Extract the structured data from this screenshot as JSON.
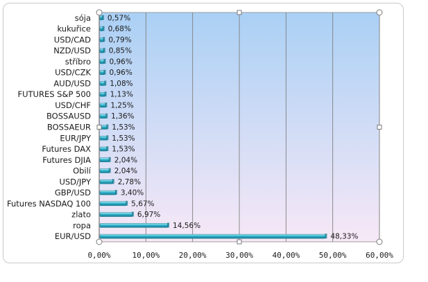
{
  "chart_data": {
    "type": "bar",
    "orientation": "horizontal",
    "categories": [
      "sója",
      "kukuřice",
      "USD/CAD",
      "NZD/USD",
      "stříbro",
      "USD/CZK",
      "AUD/USD",
      "FUTURES S&P 500",
      "USD/CHF",
      "BOSSAUSD",
      "BOSSAEUR",
      "EUR/JPY",
      "Futures DAX",
      "Futures DJIA",
      "Obilí",
      "USD/JPY",
      "GBP/USD",
      "Futures NASDAQ 100",
      "zlato",
      "ropa",
      "EUR/USD"
    ],
    "values": [
      0.57,
      0.68,
      0.79,
      0.85,
      0.96,
      0.96,
      1.08,
      1.13,
      1.25,
      1.36,
      1.53,
      1.53,
      1.53,
      2.04,
      2.04,
      2.78,
      3.4,
      5.67,
      6.97,
      14.56,
      48.33
    ],
    "data_labels": [
      "0,57%",
      "0,68%",
      "0,79%",
      "0,85%",
      "0,96%",
      "0,96%",
      "1,08%",
      "1,13%",
      "1,25%",
      "1,36%",
      "1,53%",
      "1,53%",
      "1,53%",
      "2,04%",
      "2,04%",
      "2,78%",
      "3,40%",
      "5,67%",
      "6,97%",
      "14,56%",
      "48,33%"
    ],
    "x_ticks": [
      0,
      10,
      20,
      30,
      40,
      50,
      60
    ],
    "x_tick_labels": [
      "0,00%",
      "10,00%",
      "20,00%",
      "30,00%",
      "40,00%",
      "50,00%",
      "60,00%"
    ],
    "xlim": [
      0,
      60
    ],
    "title": "",
    "xlabel": "",
    "ylabel": "",
    "grid": "vertical",
    "legend": "none",
    "colors": {
      "bar": "#2fb3cc",
      "bar_dark": "#16798f",
      "bar_light": "#bff0f8",
      "plot_top": "#aad0f5",
      "plot_bottom": "#f7e8f6",
      "grid": "#7f7f7f"
    }
  }
}
